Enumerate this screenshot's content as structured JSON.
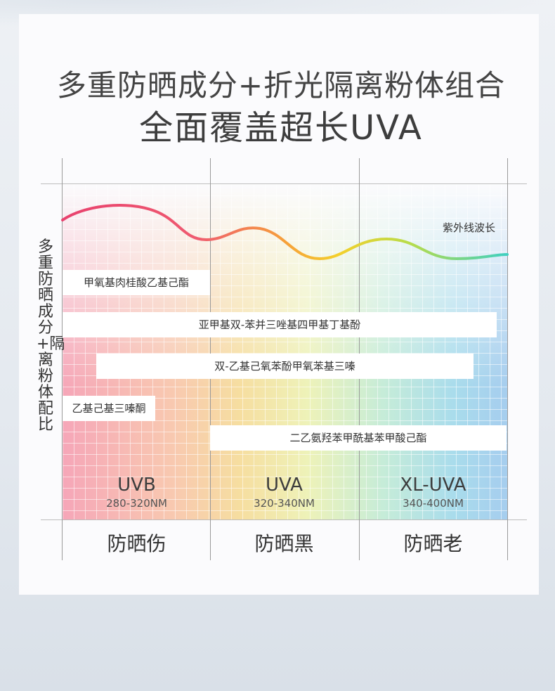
{
  "title": {
    "line1": "多重防晒成分+折光隔离粉体组合",
    "line2": "全面覆盖超长UVA"
  },
  "y_axis_label": "多重防晒成分+隔离粉体配比",
  "wave": {
    "label": "紫外线波长"
  },
  "ingredients": [
    {
      "name": "甲氧基肉桂酸乙基己酯"
    },
    {
      "name": "亚甲基双-苯并三唑基四甲基丁基酚"
    },
    {
      "name": "双-乙基己氧苯酚甲氧苯基三嗪"
    },
    {
      "name": "乙基己基三嗪酮"
    },
    {
      "name": "二乙氨羟苯甲酰基苯甲酸己酯"
    }
  ],
  "bands": [
    {
      "name": "UVB",
      "range": "280-320NM",
      "effect": "防晒伤"
    },
    {
      "name": "UVA",
      "range": "320-340NM",
      "effect": "防晒黑"
    },
    {
      "name": "XL-UVA",
      "range": "340-400NM",
      "effect": "防晒老"
    }
  ],
  "colors": {
    "wave_start": "#e8416e",
    "wave_mid": "#f4c62e",
    "wave_end": "#3fd0c0",
    "uvb_tint": "#f6a6b8",
    "uva_tint": "#f6dea0",
    "xluva_tint": "#a6cdee"
  }
}
